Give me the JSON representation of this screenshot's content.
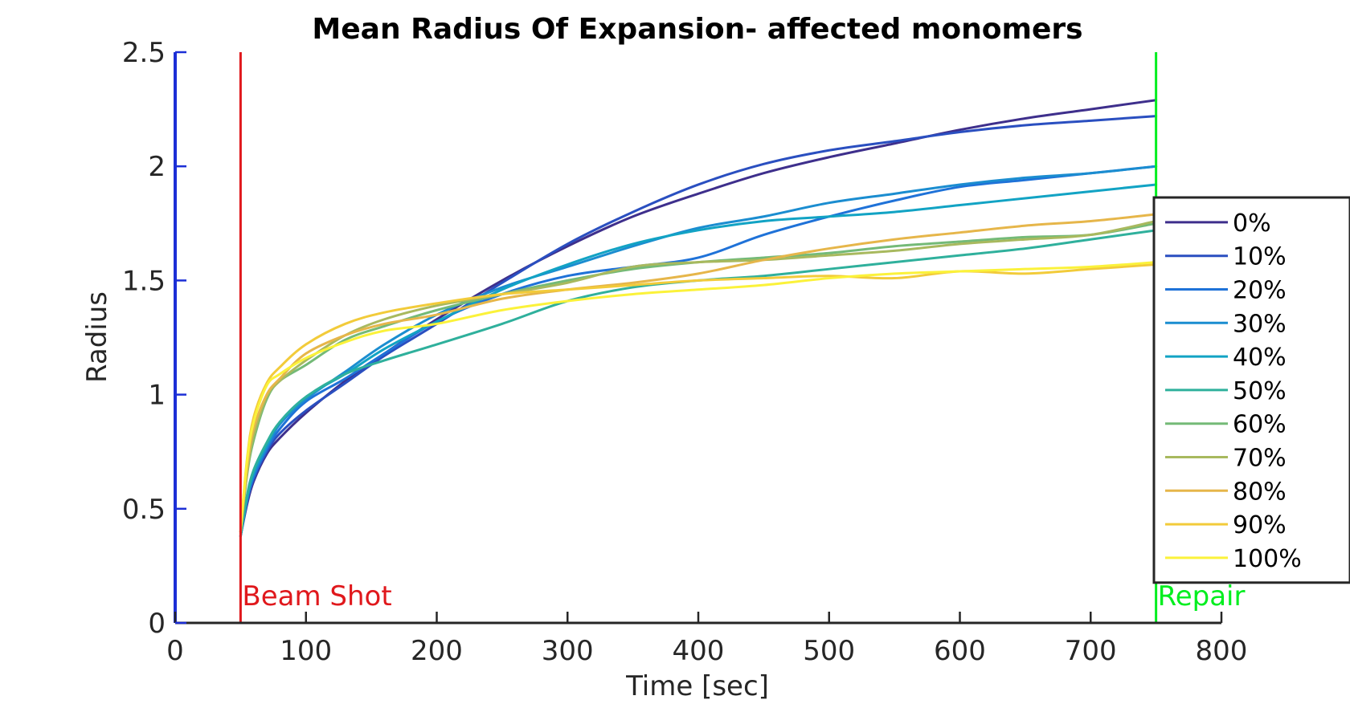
{
  "chart_data": {
    "type": "line",
    "title": "Mean Radius Of Expansion- affected monomers",
    "xlabel": "Time [sec]",
    "ylabel": "Radius",
    "xlim": [
      0,
      800
    ],
    "ylim": [
      0,
      2.5
    ],
    "xticks": [
      0,
      100,
      200,
      300,
      400,
      500,
      600,
      700,
      800
    ],
    "yticks": [
      0,
      0.5,
      1,
      1.5,
      2,
      2.5
    ],
    "xtick_labels": [
      "0",
      "100",
      "200",
      "300",
      "400",
      "500",
      "600",
      "700",
      "800"
    ],
    "ytick_labels": [
      "0",
      "0.5",
      "1",
      "1.5",
      "2",
      "2.5"
    ],
    "grid": false,
    "legend_position": "right",
    "x": [
      50,
      55,
      60,
      70,
      80,
      100,
      130,
      160,
      200,
      250,
      300,
      350,
      400,
      450,
      500,
      550,
      600,
      650,
      700,
      750
    ],
    "series": [
      {
        "name": "0%",
        "color": "#3e2f8c",
        "values": [
          0.38,
          0.52,
          0.62,
          0.74,
          0.81,
          0.92,
          1.06,
          1.18,
          1.33,
          1.5,
          1.65,
          1.78,
          1.88,
          1.97,
          2.04,
          2.1,
          2.16,
          2.21,
          2.25,
          2.29
        ]
      },
      {
        "name": "10%",
        "color": "#2a4fc0",
        "values": [
          0.38,
          0.53,
          0.63,
          0.75,
          0.83,
          0.93,
          1.05,
          1.17,
          1.31,
          1.49,
          1.66,
          1.8,
          1.92,
          2.01,
          2.07,
          2.11,
          2.15,
          2.18,
          2.2,
          2.22
        ]
      },
      {
        "name": "20%",
        "color": "#1f72d8",
        "values": [
          0.38,
          0.54,
          0.64,
          0.76,
          0.85,
          0.97,
          1.07,
          1.18,
          1.32,
          1.44,
          1.52,
          1.56,
          1.6,
          1.7,
          1.78,
          1.85,
          1.91,
          1.94,
          1.97,
          2.0
        ]
      },
      {
        "name": "30%",
        "color": "#1b8dd0",
        "values": [
          0.38,
          0.54,
          0.65,
          0.77,
          0.87,
          0.98,
          1.1,
          1.22,
          1.35,
          1.47,
          1.56,
          1.65,
          1.73,
          1.78,
          1.84,
          1.88,
          1.92,
          1.95,
          1.97,
          2.0
        ]
      },
      {
        "name": "40%",
        "color": "#12a3c4",
        "values": [
          0.38,
          0.55,
          0.66,
          0.78,
          0.88,
          0.99,
          1.09,
          1.2,
          1.32,
          1.46,
          1.57,
          1.66,
          1.72,
          1.76,
          1.78,
          1.8,
          1.83,
          1.86,
          1.89,
          1.92
        ]
      },
      {
        "name": "50%",
        "color": "#2fb09c",
        "values": [
          0.38,
          0.56,
          0.67,
          0.79,
          0.88,
          0.99,
          1.09,
          1.15,
          1.22,
          1.31,
          1.41,
          1.47,
          1.5,
          1.52,
          1.55,
          1.58,
          1.61,
          1.64,
          1.68,
          1.72
        ]
      },
      {
        "name": "60%",
        "color": "#74ba77",
        "values": [
          0.4,
          0.65,
          0.8,
          0.98,
          1.06,
          1.13,
          1.24,
          1.3,
          1.37,
          1.44,
          1.5,
          1.55,
          1.58,
          1.6,
          1.62,
          1.65,
          1.67,
          1.69,
          1.7,
          1.75
        ]
      },
      {
        "name": "70%",
        "color": "#a8b95e",
        "values": [
          0.4,
          0.66,
          0.82,
          0.99,
          1.06,
          1.15,
          1.26,
          1.33,
          1.39,
          1.44,
          1.49,
          1.56,
          1.58,
          1.59,
          1.61,
          1.63,
          1.66,
          1.68,
          1.7,
          1.76
        ]
      },
      {
        "name": "80%",
        "color": "#e6b64a",
        "values": [
          0.4,
          0.68,
          0.85,
          1.0,
          1.07,
          1.18,
          1.26,
          1.31,
          1.35,
          1.42,
          1.46,
          1.49,
          1.53,
          1.59,
          1.64,
          1.68,
          1.71,
          1.74,
          1.76,
          1.79
        ]
      },
      {
        "name": "90%",
        "color": "#f2cb3a",
        "values": [
          0.4,
          0.72,
          0.9,
          1.05,
          1.12,
          1.22,
          1.31,
          1.36,
          1.4,
          1.44,
          1.46,
          1.48,
          1.5,
          1.51,
          1.52,
          1.51,
          1.54,
          1.53,
          1.55,
          1.57
        ]
      },
      {
        "name": "100%",
        "color": "#fbf23a",
        "values": [
          0.4,
          0.71,
          0.88,
          1.04,
          1.09,
          1.16,
          1.23,
          1.28,
          1.31,
          1.37,
          1.41,
          1.44,
          1.46,
          1.48,
          1.51,
          1.53,
          1.54,
          1.55,
          1.56,
          1.58
        ]
      }
    ],
    "annotations": [
      {
        "label": "Beam Shot",
        "x": 50,
        "color": "#e0181c"
      },
      {
        "label": "Repair",
        "x": 750,
        "color": "#00ee1f"
      }
    ],
    "axis_colors": {
      "y_axis": "#1c2fd6",
      "x_axis": "#262626"
    }
  }
}
